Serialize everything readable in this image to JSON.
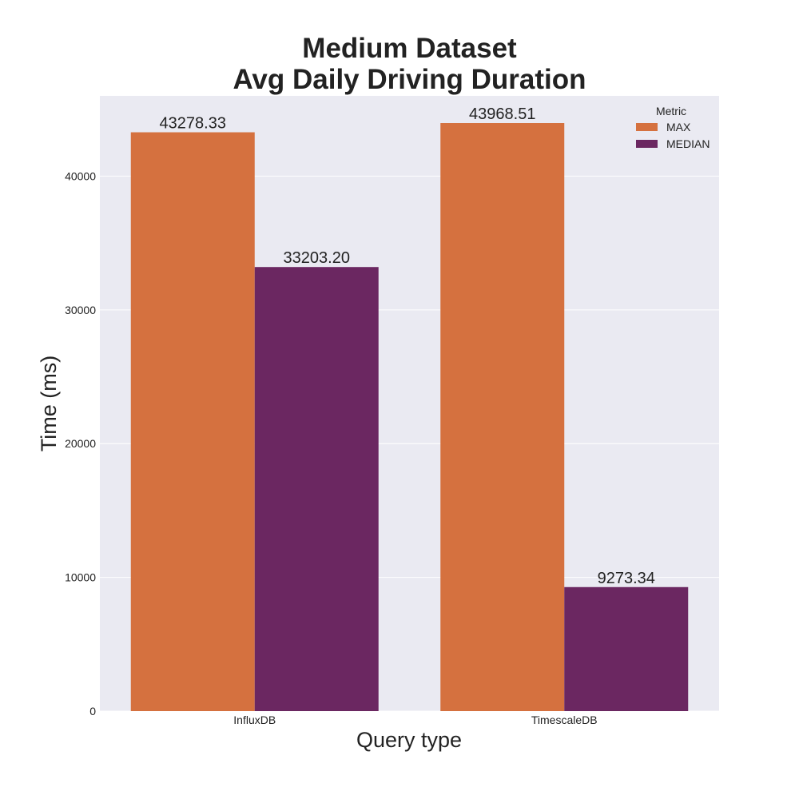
{
  "chart_data": {
    "type": "bar",
    "title": [
      "Medium Dataset",
      "Avg Daily Driving Duration"
    ],
    "xlabel": "Query type",
    "ylabel": "Time (ms)",
    "categories": [
      "InfluxDB",
      "TimescaleDB"
    ],
    "series": [
      {
        "name": "MAX",
        "color": "#d5713f",
        "values": [
          43278.33,
          43968.51
        ],
        "labels": [
          "43278.33",
          "43968.51"
        ]
      },
      {
        "name": "MEDIAN",
        "color": "#6b2761",
        "values": [
          33203.2,
          9273.34
        ],
        "labels": [
          "33203.20",
          "9273.34"
        ]
      }
    ],
    "ylim": [
      0,
      46000
    ],
    "yticks": [
      0,
      10000,
      20000,
      30000,
      40000
    ],
    "ytick_labels": [
      "0",
      "10000",
      "20000",
      "30000",
      "40000"
    ],
    "grid": true,
    "legend": {
      "title": "Metric",
      "placement": "top-right"
    },
    "background_color": "#eaeaf2",
    "gridline_color": "#ffffff"
  }
}
